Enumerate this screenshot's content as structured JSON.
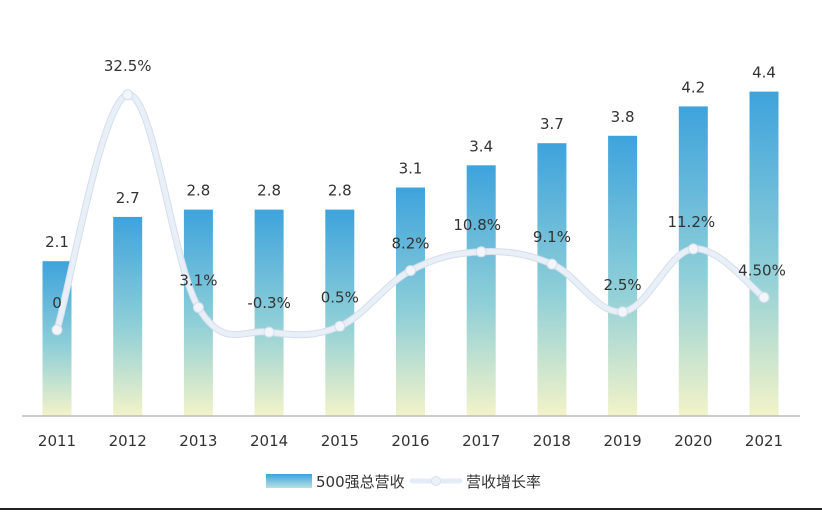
{
  "chart_data": {
    "type": "bar+line",
    "categories": [
      "2011",
      "2012",
      "2013",
      "2014",
      "2015",
      "2016",
      "2017",
      "2018",
      "2019",
      "2020",
      "2021"
    ],
    "series": [
      {
        "name": "500强总营收",
        "kind": "bar",
        "values": [
          2.1,
          2.7,
          2.8,
          2.8,
          2.8,
          3.1,
          3.4,
          3.7,
          3.8,
          4.2,
          4.4
        ],
        "labels": [
          "2.1",
          "2.7",
          "2.8",
          "2.8",
          "2.8",
          "3.1",
          "3.4",
          "3.7",
          "3.8",
          "4.2",
          "4.4"
        ]
      },
      {
        "name": "营收增长率",
        "kind": "line",
        "values": [
          0,
          32.5,
          3.1,
          -0.3,
          0.5,
          8.2,
          10.8,
          9.1,
          2.5,
          11.2,
          4.5
        ],
        "labels": [
          "0",
          "32.5%",
          "3.1%",
          "-0.3%",
          "0.5%",
          "8.2%",
          "10.8%",
          "9.1%",
          "2.5%",
          "11.2%",
          "4.50%"
        ]
      }
    ],
    "ylim_bar": [
      0,
      5.1
    ],
    "ylim_line": [
      -2.5,
      34
    ],
    "grid": false,
    "legend_position": "bottom-center",
    "colors": {
      "bar_top": "#3ea3dc",
      "bar_mid": "#8fcfd8",
      "bar_bottom": "#f3f3c8",
      "line": "#e4ecf6",
      "marker": "#eef2f8",
      "axis": "#bbbbbb",
      "text": "#333333"
    }
  }
}
